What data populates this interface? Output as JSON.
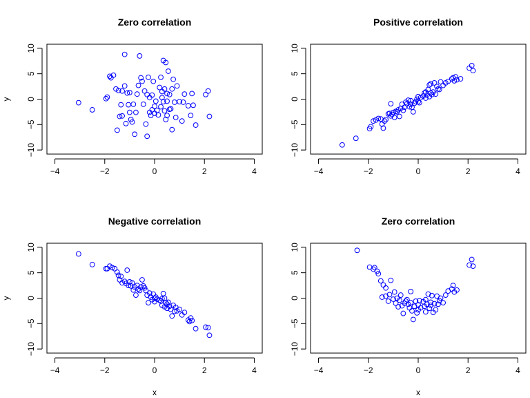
{
  "figure": {
    "point_color": "#0000ff"
  },
  "chart_data": [
    {
      "type": "scatter",
      "title": "Zero correlation",
      "xlabel": "",
      "ylabel": "y",
      "xlim": [
        -4,
        4
      ],
      "ylim": [
        -10,
        10
      ],
      "xticks": [
        -4,
        -2,
        0,
        2,
        4
      ],
      "yticks": [
        -10,
        -5,
        0,
        5,
        10
      ],
      "grid": false,
      "points": [
        [
          -3.05,
          -0.7
        ],
        [
          -2.5,
          -2.1
        ],
        [
          -1.95,
          0.1
        ],
        [
          -1.9,
          0.4
        ],
        [
          -1.8,
          4.5
        ],
        [
          -1.75,
          4.2
        ],
        [
          -1.65,
          4.7
        ],
        [
          -1.55,
          2.0
        ],
        [
          -1.5,
          -6.1
        ],
        [
          -1.45,
          1.7
        ],
        [
          -1.4,
          -3.4
        ],
        [
          -1.35,
          -1.1
        ],
        [
          -1.3,
          -3.3
        ],
        [
          -1.3,
          1.6
        ],
        [
          -1.2,
          8.8
        ],
        [
          -1.2,
          2.6
        ],
        [
          -1.15,
          -4.8
        ],
        [
          -1.1,
          1.2
        ],
        [
          -1.05,
          -1.1
        ],
        [
          -1.0,
          -2.6
        ],
        [
          -1.0,
          1.3
        ],
        [
          -0.95,
          -4.0
        ],
        [
          -0.9,
          -4.5
        ],
        [
          -0.85,
          -1.0
        ],
        [
          -0.8,
          -6.9
        ],
        [
          -0.75,
          -2.6
        ],
        [
          -0.7,
          1.0
        ],
        [
          -0.65,
          2.7
        ],
        [
          -0.6,
          8.5
        ],
        [
          -0.55,
          4.2
        ],
        [
          -0.5,
          3.5
        ],
        [
          -0.45,
          -1.0
        ],
        [
          -0.4,
          1.6
        ],
        [
          -0.35,
          -4.9
        ],
        [
          -0.3,
          -7.3
        ],
        [
          -0.3,
          0.9
        ],
        [
          -0.25,
          4.3
        ],
        [
          -0.2,
          -2.6
        ],
        [
          -0.2,
          0.3
        ],
        [
          -0.15,
          -3.2
        ],
        [
          -0.1,
          -2.1
        ],
        [
          -0.1,
          0.8
        ],
        [
          -0.05,
          3.5
        ],
        [
          0.0,
          -1.4
        ],
        [
          0.0,
          -2.8
        ],
        [
          0.05,
          -0.4
        ],
        [
          0.1,
          -2.2
        ],
        [
          0.15,
          -3.1
        ],
        [
          0.2,
          2.3
        ],
        [
          0.25,
          4.3
        ],
        [
          0.25,
          -1.5
        ],
        [
          0.3,
          1.5
        ],
        [
          0.3,
          0.3
        ],
        [
          0.35,
          7.6
        ],
        [
          0.35,
          -0.5
        ],
        [
          0.4,
          -2.3
        ],
        [
          0.4,
          2.0
        ],
        [
          0.45,
          -4.0
        ],
        [
          0.45,
          7.2
        ],
        [
          0.5,
          -3.2
        ],
        [
          0.5,
          -0.4
        ],
        [
          0.5,
          1.1
        ],
        [
          0.55,
          5.5
        ],
        [
          0.6,
          0.9
        ],
        [
          0.6,
          -2.0
        ],
        [
          0.65,
          -1.9
        ],
        [
          0.7,
          -6.0
        ],
        [
          0.7,
          2.0
        ],
        [
          0.75,
          3.9
        ],
        [
          0.8,
          -0.6
        ],
        [
          0.85,
          -3.6
        ],
        [
          0.9,
          2.6
        ],
        [
          1.0,
          -0.5
        ],
        [
          1.1,
          -4.3
        ],
        [
          1.15,
          -0.6
        ],
        [
          1.2,
          1.0
        ],
        [
          1.35,
          -1.3
        ],
        [
          1.45,
          -3.2
        ],
        [
          1.5,
          1.1
        ],
        [
          1.55,
          -1.2
        ],
        [
          1.65,
          -5.1
        ],
        [
          2.05,
          0.9
        ],
        [
          2.15,
          1.6
        ],
        [
          2.2,
          -3.4
        ]
      ]
    },
    {
      "type": "scatter",
      "title": "Positive correlation",
      "xlabel": "",
      "ylabel": "",
      "xlim": [
        -4,
        4
      ],
      "ylim": [
        -10,
        10
      ],
      "xticks": [
        -4,
        -2,
        0,
        2,
        4
      ],
      "yticks": [
        -10,
        -5,
        0,
        5,
        10
      ],
      "grid": false,
      "points": [
        [
          -3.05,
          -9.0
        ],
        [
          -2.5,
          -7.7
        ],
        [
          -1.95,
          -5.8
        ],
        [
          -1.9,
          -5.4
        ],
        [
          -1.8,
          -4.3
        ],
        [
          -1.7,
          -4.1
        ],
        [
          -1.6,
          -3.8
        ],
        [
          -1.5,
          -3.9
        ],
        [
          -1.45,
          -4.9
        ],
        [
          -1.4,
          -5.7
        ],
        [
          -1.35,
          -4.3
        ],
        [
          -1.3,
          -4.0
        ],
        [
          -1.2,
          -2.9
        ],
        [
          -1.15,
          -2.8
        ],
        [
          -1.1,
          -3.3
        ],
        [
          -1.1,
          -0.9
        ],
        [
          -1.05,
          -3.0
        ],
        [
          -1.0,
          -2.6
        ],
        [
          -0.95,
          -3.6
        ],
        [
          -0.9,
          -2.4
        ],
        [
          -0.85,
          -2.5
        ],
        [
          -0.8,
          -2.1
        ],
        [
          -0.75,
          -3.4
        ],
        [
          -0.7,
          -1.8
        ],
        [
          -0.65,
          -1.0
        ],
        [
          -0.6,
          -2.2
        ],
        [
          -0.55,
          -1.6
        ],
        [
          -0.5,
          -0.6
        ],
        [
          -0.45,
          -0.9
        ],
        [
          -0.4,
          -0.2
        ],
        [
          -0.35,
          -1.5
        ],
        [
          -0.3,
          -1.0
        ],
        [
          -0.3,
          -0.3
        ],
        [
          -0.25,
          -1.6
        ],
        [
          -0.2,
          -2.5
        ],
        [
          -0.15,
          -0.8
        ],
        [
          -0.1,
          -0.5
        ],
        [
          -0.05,
          0.0
        ],
        [
          0.0,
          -0.5
        ],
        [
          0.0,
          0.5
        ],
        [
          0.05,
          -0.7
        ],
        [
          0.1,
          0.3
        ],
        [
          0.2,
          0.6
        ],
        [
          0.25,
          1.2
        ],
        [
          0.3,
          0.2
        ],
        [
          0.3,
          1.4
        ],
        [
          0.35,
          0.8
        ],
        [
          0.4,
          1.9
        ],
        [
          0.45,
          0.5
        ],
        [
          0.45,
          2.8
        ],
        [
          0.5,
          1.2
        ],
        [
          0.5,
          3.0
        ],
        [
          0.55,
          0.9
        ],
        [
          0.6,
          1.4
        ],
        [
          0.65,
          3.2
        ],
        [
          0.7,
          1.0
        ],
        [
          0.75,
          2.5
        ],
        [
          0.8,
          2.0
        ],
        [
          0.85,
          1.9
        ],
        [
          0.9,
          3.4
        ],
        [
          1.0,
          2.7
        ],
        [
          1.1,
          3.2
        ],
        [
          1.2,
          3.5
        ],
        [
          1.35,
          4.0
        ],
        [
          1.4,
          4.2
        ],
        [
          1.45,
          3.6
        ],
        [
          1.5,
          4.4
        ],
        [
          1.55,
          3.8
        ],
        [
          1.7,
          4.0
        ],
        [
          2.05,
          6.1
        ],
        [
          2.15,
          6.6
        ],
        [
          2.2,
          5.6
        ]
      ]
    },
    {
      "type": "scatter",
      "title": "Negative correlation",
      "xlabel": "x",
      "ylabel": "y",
      "xlim": [
        -4,
        4
      ],
      "ylim": [
        -10,
        10
      ],
      "xticks": [
        -4,
        -2,
        0,
        2,
        4
      ],
      "yticks": [
        -10,
        -5,
        0,
        5,
        10
      ],
      "grid": false,
      "points": [
        [
          -3.05,
          8.7
        ],
        [
          -2.5,
          6.6
        ],
        [
          -1.95,
          5.8
        ],
        [
          -1.9,
          5.8
        ],
        [
          -1.8,
          6.3
        ],
        [
          -1.7,
          6.0
        ],
        [
          -1.6,
          5.8
        ],
        [
          -1.5,
          5.1
        ],
        [
          -1.45,
          4.5
        ],
        [
          -1.4,
          3.6
        ],
        [
          -1.35,
          4.3
        ],
        [
          -1.3,
          3.0
        ],
        [
          -1.2,
          3.3
        ],
        [
          -1.15,
          2.9
        ],
        [
          -1.1,
          5.5
        ],
        [
          -1.05,
          2.5
        ],
        [
          -1.0,
          3.2
        ],
        [
          -0.95,
          2.4
        ],
        [
          -0.9,
          3.0
        ],
        [
          -0.85,
          1.6
        ],
        [
          -0.8,
          2.2
        ],
        [
          -0.75,
          0.6
        ],
        [
          -0.7,
          2.5
        ],
        [
          -0.65,
          1.8
        ],
        [
          -0.6,
          1.5
        ],
        [
          -0.55,
          2.2
        ],
        [
          -0.5,
          3.6
        ],
        [
          -0.45,
          2.4
        ],
        [
          -0.4,
          2.0
        ],
        [
          -0.35,
          1.5
        ],
        [
          -0.3,
          0.6
        ],
        [
          -0.25,
          -0.9
        ],
        [
          -0.2,
          1.0
        ],
        [
          -0.15,
          0.2
        ],
        [
          -0.1,
          -0.3
        ],
        [
          -0.05,
          0.8
        ],
        [
          0.0,
          0.0
        ],
        [
          0.0,
          -0.7
        ],
        [
          0.05,
          0.2
        ],
        [
          0.1,
          -0.2
        ],
        [
          0.2,
          -0.4
        ],
        [
          0.25,
          -0.6
        ],
        [
          0.3,
          -1.4
        ],
        [
          0.3,
          -0.1
        ],
        [
          0.35,
          0.9
        ],
        [
          0.4,
          -1.7
        ],
        [
          0.4,
          0.0
        ],
        [
          0.45,
          -0.9
        ],
        [
          0.5,
          -2.0
        ],
        [
          0.5,
          -1.2
        ],
        [
          0.55,
          -0.8
        ],
        [
          0.6,
          -1.6
        ],
        [
          0.65,
          -2.2
        ],
        [
          0.7,
          -3.5
        ],
        [
          0.75,
          -1.4
        ],
        [
          0.8,
          -2.6
        ],
        [
          0.85,
          -1.8
        ],
        [
          0.9,
          -2.5
        ],
        [
          1.0,
          -2.2
        ],
        [
          1.1,
          -3.3
        ],
        [
          1.2,
          -2.8
        ],
        [
          1.35,
          -4.3
        ],
        [
          1.4,
          -4.6
        ],
        [
          1.45,
          -3.9
        ],
        [
          1.5,
          -4.4
        ],
        [
          1.65,
          -6.0
        ],
        [
          2.05,
          -5.7
        ],
        [
          2.15,
          -5.8
        ],
        [
          2.2,
          -7.3
        ]
      ]
    },
    {
      "type": "scatter",
      "title": "Zero correlation",
      "xlabel": "x",
      "ylabel": "",
      "xlim": [
        -4,
        4
      ],
      "ylim": [
        -10,
        10
      ],
      "xticks": [
        -4,
        -2,
        0,
        2,
        4
      ],
      "yticks": [
        -10,
        -5,
        0,
        5,
        10
      ],
      "grid": false,
      "points": [
        [
          -2.45,
          9.4
        ],
        [
          -1.95,
          6.1
        ],
        [
          -1.8,
          5.7
        ],
        [
          -1.75,
          6.0
        ],
        [
          -1.65,
          5.3
        ],
        [
          -1.6,
          4.8
        ],
        [
          -1.5,
          3.4
        ],
        [
          -1.45,
          0.2
        ],
        [
          -1.4,
          2.6
        ],
        [
          -1.3,
          0.4
        ],
        [
          -1.3,
          2.0
        ],
        [
          -1.2,
          -0.6
        ],
        [
          -1.15,
          0.7
        ],
        [
          -1.1,
          3.5
        ],
        [
          -1.0,
          -0.2
        ],
        [
          -0.95,
          1.2
        ],
        [
          -0.9,
          -1.0
        ],
        [
          -0.85,
          0.0
        ],
        [
          -0.8,
          -1.7
        ],
        [
          -0.75,
          -0.4
        ],
        [
          -0.7,
          0.6
        ],
        [
          -0.65,
          -1.5
        ],
        [
          -0.6,
          -3.0
        ],
        [
          -0.55,
          -1.0
        ],
        [
          -0.5,
          -0.6
        ],
        [
          -0.45,
          -0.3
        ],
        [
          -0.4,
          -1.2
        ],
        [
          -0.35,
          -1.9
        ],
        [
          -0.3,
          -0.9
        ],
        [
          -0.3,
          1.3
        ],
        [
          -0.25,
          -2.5
        ],
        [
          -0.2,
          -4.2
        ],
        [
          -0.15,
          -1.6
        ],
        [
          -0.1,
          -0.6
        ],
        [
          -0.05,
          -2.9
        ],
        [
          0.0,
          -2.3
        ],
        [
          0.0,
          -1.3
        ],
        [
          0.05,
          -0.5
        ],
        [
          0.1,
          -1.9
        ],
        [
          0.2,
          -0.7
        ],
        [
          0.25,
          -1.6
        ],
        [
          0.3,
          -2.7
        ],
        [
          0.3,
          -0.3
        ],
        [
          0.35,
          -1.2
        ],
        [
          0.4,
          0.8
        ],
        [
          0.45,
          -2.0
        ],
        [
          0.5,
          -1.4
        ],
        [
          0.5,
          -0.8
        ],
        [
          0.55,
          0.5
        ],
        [
          0.6,
          -2.8
        ],
        [
          0.65,
          -1.1
        ],
        [
          0.7,
          -2.3
        ],
        [
          0.75,
          0.4
        ],
        [
          0.8,
          -1.2
        ],
        [
          0.85,
          -0.5
        ],
        [
          0.9,
          0.0
        ],
        [
          1.0,
          -0.9
        ],
        [
          1.1,
          0.6
        ],
        [
          1.2,
          1.4
        ],
        [
          1.35,
          1.8
        ],
        [
          1.4,
          2.5
        ],
        [
          1.45,
          1.2
        ],
        [
          1.55,
          1.6
        ],
        [
          2.05,
          6.5
        ],
        [
          2.15,
          7.6
        ],
        [
          2.2,
          6.3
        ]
      ]
    }
  ]
}
